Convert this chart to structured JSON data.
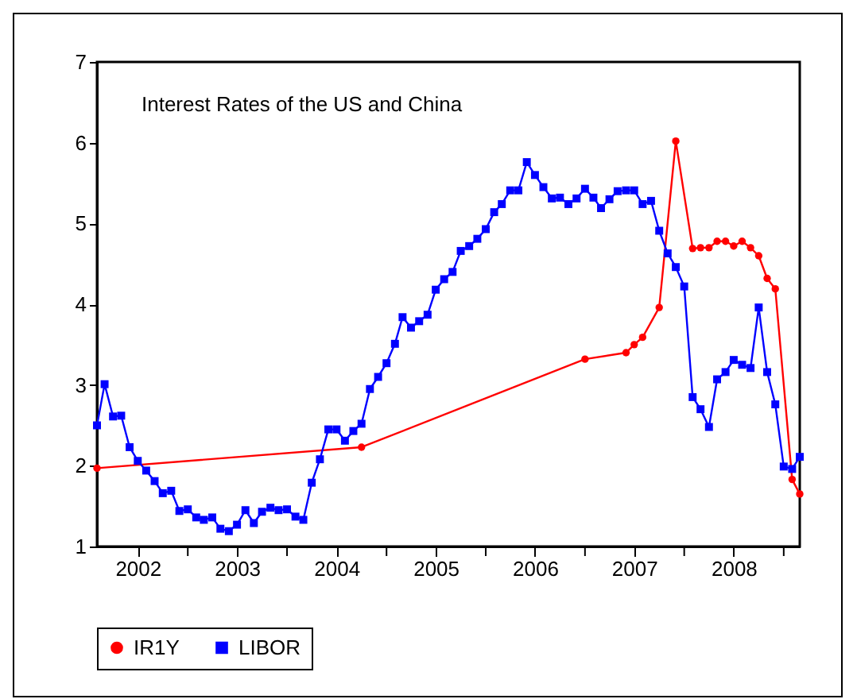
{
  "chart_data": {
    "type": "line",
    "title": "Interest Rates of the US and China",
    "xlim": [
      "2002-02",
      "2009-03"
    ],
    "xticks": [
      {
        "value": "2002-07",
        "label": "2002"
      },
      {
        "value": "2003",
        "label": null
      },
      {
        "value": "2003-07",
        "label": "2003"
      },
      {
        "value": "2004",
        "label": null
      },
      {
        "value": "2004-07",
        "label": "2004"
      },
      {
        "value": "2005",
        "label": null
      },
      {
        "value": "2005-07",
        "label": "2005"
      },
      {
        "value": "2006",
        "label": null
      },
      {
        "value": "2006-07",
        "label": "2006"
      },
      {
        "value": "2007",
        "label": null
      },
      {
        "value": "2007-07",
        "label": "2007"
      },
      {
        "value": "2008",
        "label": null
      },
      {
        "value": "2008-07",
        "label": "2008"
      },
      {
        "value": "2009",
        "label": null
      }
    ],
    "ylim": [
      1,
      7
    ],
    "yticks": [
      1,
      2,
      3,
      4,
      5,
      6,
      7
    ],
    "grid": false,
    "legend": "bottom",
    "line_style": "solid",
    "series": [
      {
        "name": "IR1Y",
        "color": "#ff0000",
        "marker": "circle",
        "x": [
          "2002-02",
          "2004-10",
          "2007-01",
          "2007-06",
          "2007-07",
          "2007-08",
          "2007-10",
          "2007-12",
          "2008-02",
          "2008-03",
          "2008-04",
          "2008-05",
          "2008-06",
          "2008-07",
          "2008-08",
          "2008-09",
          "2008-10",
          "2008-11",
          "2008-12",
          "2009-02",
          "2009-03"
        ],
        "values": [
          1.97,
          2.23,
          3.32,
          3.4,
          3.5,
          3.59,
          3.96,
          6.02,
          4.69,
          4.7,
          4.7,
          4.78,
          4.78,
          4.72,
          4.78,
          4.7,
          4.6,
          4.32,
          4.19,
          1.83,
          1.65
        ]
      },
      {
        "name": "LIBOR",
        "color": "#0000ff",
        "marker": "square",
        "x": [
          "2002-02",
          "2002-03",
          "2002-04",
          "2002-05",
          "2002-06",
          "2002-07",
          "2002-08",
          "2002-09",
          "2002-10",
          "2002-11",
          "2002-12",
          "2003-01",
          "2003-02",
          "2003-03",
          "2003-04",
          "2003-05",
          "2003-06",
          "2003-07",
          "2003-08",
          "2003-09",
          "2003-10",
          "2003-11",
          "2003-12",
          "2004-01",
          "2004-02",
          "2004-03",
          "2004-04",
          "2004-05",
          "2004-06",
          "2004-07",
          "2004-08",
          "2004-09",
          "2004-10",
          "2004-11",
          "2004-12",
          "2005-01",
          "2005-02",
          "2005-03",
          "2005-04",
          "2005-05",
          "2005-06",
          "2005-07",
          "2005-08",
          "2005-09",
          "2005-10",
          "2005-11",
          "2005-12",
          "2006-01",
          "2006-02",
          "2006-03",
          "2006-04",
          "2006-05",
          "2006-06",
          "2006-07",
          "2006-08",
          "2006-09",
          "2006-10",
          "2006-11",
          "2006-12",
          "2007-01",
          "2007-02",
          "2007-03",
          "2007-04",
          "2007-05",
          "2007-06",
          "2007-07",
          "2007-08",
          "2007-09",
          "2007-10",
          "2007-11",
          "2007-12",
          "2008-01",
          "2008-02",
          "2008-03",
          "2008-04",
          "2008-05",
          "2008-06",
          "2008-07",
          "2008-08",
          "2008-09",
          "2008-10",
          "2008-11",
          "2008-12",
          "2009-01",
          "2009-02",
          "2009-03"
        ],
        "values": [
          2.5,
          3.01,
          2.61,
          2.62,
          2.23,
          2.06,
          1.94,
          1.81,
          1.66,
          1.69,
          1.44,
          1.46,
          1.36,
          1.33,
          1.36,
          1.22,
          1.19,
          1.27,
          1.45,
          1.29,
          1.43,
          1.48,
          1.45,
          1.46,
          1.37,
          1.33,
          1.79,
          2.08,
          2.45,
          2.45,
          2.31,
          2.43,
          2.52,
          2.95,
          3.1,
          3.27,
          3.51,
          3.84,
          3.71,
          3.79,
          3.87,
          4.18,
          4.31,
          4.4,
          4.66,
          4.72,
          4.81,
          4.93,
          5.14,
          5.24,
          5.41,
          5.41,
          5.76,
          5.6,
          5.45,
          5.31,
          5.32,
          5.24,
          5.31,
          5.43,
          5.32,
          5.19,
          5.3,
          5.4,
          5.41,
          5.41,
          5.24,
          5.28,
          4.91,
          4.63,
          4.46,
          4.22,
          2.85,
          2.7,
          2.48,
          3.07,
          3.16,
          3.31,
          3.25,
          3.21,
          3.96,
          3.16,
          2.76,
          1.99,
          1.96,
          2.11
        ]
      }
    ]
  }
}
